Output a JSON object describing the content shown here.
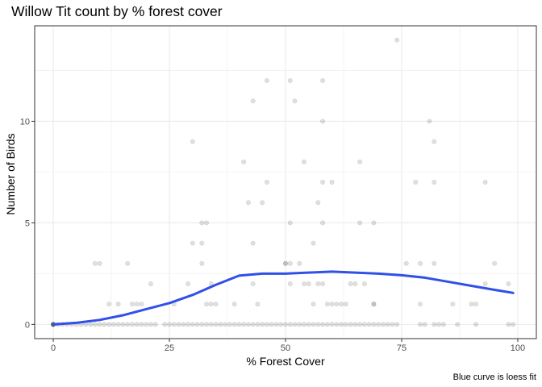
{
  "chart_data": {
    "type": "scatter",
    "title": "Willow Tit count by % forest cover",
    "xlabel": "% Forest Cover",
    "ylabel": "Number of Birds",
    "caption": "Blue curve is loess fit",
    "xlim": [
      -4,
      104
    ],
    "ylim": [
      -0.7,
      14.7
    ],
    "xticks": [
      0,
      25,
      50,
      75,
      100
    ],
    "yticks": [
      0,
      5,
      10
    ],
    "grid": true,
    "colors": {
      "points": "#000000",
      "curve": "#3050e8",
      "grid": "#ebebeb",
      "border": "#333333"
    },
    "points": [
      [
        0,
        0
      ],
      [
        0,
        0
      ],
      [
        0,
        0
      ],
      [
        0,
        0
      ],
      [
        0,
        0
      ],
      [
        0,
        0
      ],
      [
        1,
        0
      ],
      [
        2,
        0
      ],
      [
        3,
        0
      ],
      [
        4,
        0
      ],
      [
        5,
        0
      ],
      [
        6,
        0
      ],
      [
        7,
        0
      ],
      [
        8,
        0
      ],
      [
        9,
        0
      ],
      [
        10,
        0
      ],
      [
        11,
        0
      ],
      [
        12,
        0
      ],
      [
        13,
        0
      ],
      [
        14,
        0
      ],
      [
        15,
        0
      ],
      [
        16,
        0
      ],
      [
        17,
        0
      ],
      [
        18,
        0
      ],
      [
        19,
        0
      ],
      [
        20,
        0
      ],
      [
        21,
        0
      ],
      [
        22,
        0
      ],
      [
        24,
        0
      ],
      [
        25,
        0
      ],
      [
        26,
        0
      ],
      [
        27,
        0
      ],
      [
        28,
        0
      ],
      [
        29,
        0
      ],
      [
        30,
        0
      ],
      [
        31,
        0
      ],
      [
        32,
        0
      ],
      [
        33,
        0
      ],
      [
        34,
        0
      ],
      [
        35,
        0
      ],
      [
        36,
        0
      ],
      [
        37,
        0
      ],
      [
        38,
        0
      ],
      [
        39,
        0
      ],
      [
        40,
        0
      ],
      [
        41,
        0
      ],
      [
        42,
        0
      ],
      [
        43,
        0
      ],
      [
        44,
        0
      ],
      [
        45,
        0
      ],
      [
        46,
        0
      ],
      [
        47,
        0
      ],
      [
        48,
        0
      ],
      [
        49,
        0
      ],
      [
        50,
        0
      ],
      [
        51,
        0
      ],
      [
        52,
        0
      ],
      [
        53,
        0
      ],
      [
        54,
        0
      ],
      [
        55,
        0
      ],
      [
        56,
        0
      ],
      [
        57,
        0
      ],
      [
        58,
        0
      ],
      [
        59,
        0
      ],
      [
        60,
        0
      ],
      [
        61,
        0
      ],
      [
        62,
        0
      ],
      [
        63,
        0
      ],
      [
        64,
        0
      ],
      [
        65,
        0
      ],
      [
        66,
        0
      ],
      [
        67,
        0
      ],
      [
        68,
        0
      ],
      [
        69,
        0
      ],
      [
        70,
        0
      ],
      [
        71,
        0
      ],
      [
        72,
        0
      ],
      [
        73,
        0
      ],
      [
        74,
        0
      ],
      [
        79,
        0
      ],
      [
        80,
        0
      ],
      [
        82,
        0
      ],
      [
        83,
        0
      ],
      [
        84,
        0
      ],
      [
        87,
        0
      ],
      [
        91,
        0
      ],
      [
        98,
        0
      ],
      [
        99,
        0
      ],
      [
        9,
        3
      ],
      [
        10,
        3
      ],
      [
        16,
        3
      ],
      [
        12,
        1
      ],
      [
        14,
        1
      ],
      [
        17,
        1
      ],
      [
        18,
        1
      ],
      [
        19,
        1
      ],
      [
        21,
        2
      ],
      [
        26,
        1
      ],
      [
        29,
        2
      ],
      [
        30,
        4
      ],
      [
        32,
        3
      ],
      [
        32,
        4
      ],
      [
        33,
        1
      ],
      [
        34,
        1
      ],
      [
        34,
        2
      ],
      [
        35,
        1
      ],
      [
        39,
        1
      ],
      [
        43,
        2
      ],
      [
        44,
        1
      ],
      [
        50,
        3
      ],
      [
        50,
        3
      ],
      [
        51,
        3
      ],
      [
        51,
        2
      ],
      [
        53,
        3
      ],
      [
        54,
        2
      ],
      [
        55,
        2
      ],
      [
        56,
        1
      ],
      [
        57,
        2
      ],
      [
        58,
        2
      ],
      [
        59,
        1
      ],
      [
        60,
        1
      ],
      [
        61,
        1
      ],
      [
        62,
        1
      ],
      [
        63,
        1
      ],
      [
        64,
        2
      ],
      [
        65,
        2
      ],
      [
        67,
        2
      ],
      [
        69,
        1
      ],
      [
        69,
        1
      ],
      [
        76,
        3
      ],
      [
        79,
        3
      ],
      [
        79,
        1
      ],
      [
        82,
        3
      ],
      [
        86,
        1
      ],
      [
        90,
        1
      ],
      [
        91,
        1
      ],
      [
        93,
        2
      ],
      [
        95,
        3
      ],
      [
        98,
        2
      ],
      [
        30,
        9
      ],
      [
        32,
        5
      ],
      [
        33,
        5
      ],
      [
        41,
        8
      ],
      [
        42,
        6
      ],
      [
        43,
        11
      ],
      [
        43,
        4
      ],
      [
        45,
        6
      ],
      [
        46,
        7
      ],
      [
        46,
        12
      ],
      [
        51,
        12
      ],
      [
        51,
        5
      ],
      [
        52,
        11
      ],
      [
        54,
        8
      ],
      [
        56,
        4
      ],
      [
        57,
        6
      ],
      [
        58,
        12
      ],
      [
        58,
        10
      ],
      [
        58,
        7
      ],
      [
        58,
        5
      ],
      [
        60,
        7
      ],
      [
        66,
        8
      ],
      [
        66,
        5
      ],
      [
        69,
        5
      ],
      [
        74,
        14
      ],
      [
        78,
        7
      ],
      [
        81,
        10
      ],
      [
        82,
        9
      ],
      [
        82,
        7
      ],
      [
        93,
        7
      ]
    ],
    "loess_fit": [
      [
        0,
        0
      ],
      [
        5,
        0.08
      ],
      [
        10,
        0.22
      ],
      [
        15,
        0.45
      ],
      [
        20,
        0.75
      ],
      [
        25,
        1.05
      ],
      [
        30,
        1.45
      ],
      [
        35,
        1.95
      ],
      [
        40,
        2.4
      ],
      [
        45,
        2.5
      ],
      [
        50,
        2.5
      ],
      [
        55,
        2.55
      ],
      [
        60,
        2.6
      ],
      [
        65,
        2.55
      ],
      [
        70,
        2.5
      ],
      [
        75,
        2.42
      ],
      [
        80,
        2.3
      ],
      [
        85,
        2.1
      ],
      [
        90,
        1.9
      ],
      [
        95,
        1.7
      ],
      [
        99,
        1.55
      ]
    ]
  }
}
